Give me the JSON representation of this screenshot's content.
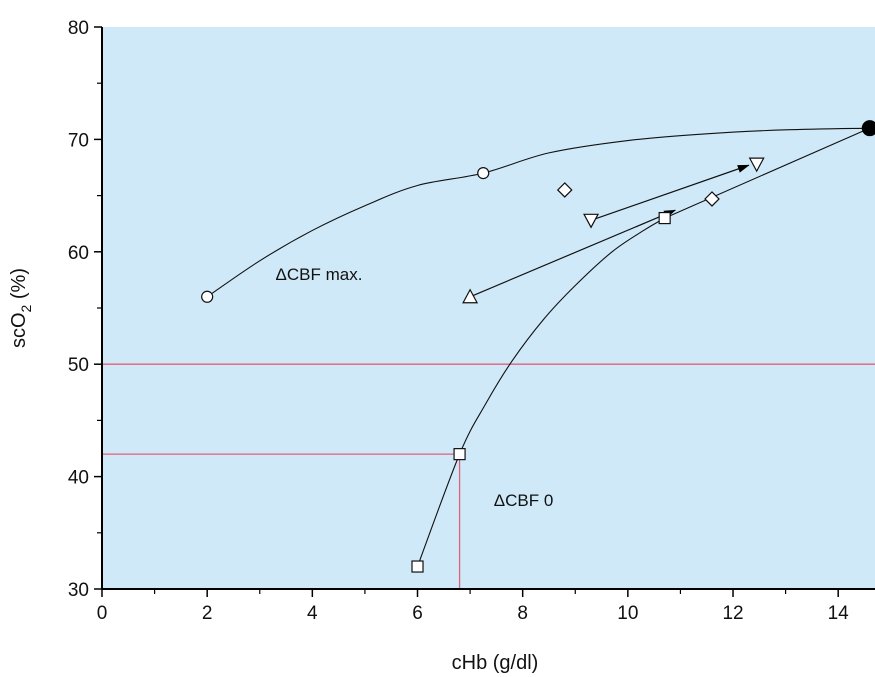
{
  "chart_data": {
    "type": "scatter",
    "xlabel": "cHb (g/dl)",
    "ylabel_main": "scO",
    "ylabel_sub": "2",
    "ylabel_unit": " (%)",
    "xlim": [
      0,
      14.7
    ],
    "ylim": [
      30,
      80
    ],
    "xticks": [
      0,
      2,
      4,
      6,
      8,
      10,
      12,
      14
    ],
    "yticks": [
      30,
      40,
      50,
      60,
      70,
      80
    ],
    "grid": false,
    "plot_background": "#cfe9f8",
    "reference_line_color": "#e0607a",
    "series": [
      {
        "marker": "filled-circle",
        "points": [
          [
            14.6,
            71
          ]
        ]
      },
      {
        "marker": "circle",
        "points": [
          [
            2,
            56
          ],
          [
            7.25,
            67
          ]
        ]
      },
      {
        "marker": "square",
        "points": [
          [
            6,
            32
          ],
          [
            6.8,
            42
          ],
          [
            10.7,
            63
          ]
        ]
      },
      {
        "marker": "diamond",
        "points": [
          [
            8.8,
            65.5
          ],
          [
            11.6,
            64.7
          ]
        ]
      },
      {
        "marker": "triangle-down",
        "points": [
          [
            9.3,
            62.8
          ],
          [
            12.45,
            67.8
          ]
        ]
      },
      {
        "marker": "triangle-up",
        "points": [
          [
            7.0,
            56
          ]
        ]
      }
    ],
    "curves": [
      {
        "name": "delta-cbf-max-curve",
        "points": [
          [
            2,
            56
          ],
          [
            3,
            59.2
          ],
          [
            4,
            61.9
          ],
          [
            5,
            64.1
          ],
          [
            6,
            65.9
          ],
          [
            7.25,
            67
          ],
          [
            8.5,
            68.8
          ],
          [
            10,
            69.9
          ],
          [
            11.5,
            70.5
          ],
          [
            13,
            70.85
          ],
          [
            14.6,
            71
          ]
        ]
      },
      {
        "name": "delta-cbf-0-curve",
        "points": [
          [
            6,
            32
          ],
          [
            6.8,
            42
          ],
          [
            7.3,
            46.5
          ],
          [
            7.8,
            50.3
          ],
          [
            8.4,
            54
          ],
          [
            9.0,
            57
          ],
          [
            9.7,
            60
          ],
          [
            10.3,
            61.9
          ],
          [
            10.7,
            63
          ]
        ]
      },
      {
        "name": "square-to-filled-line",
        "points": [
          [
            10.7,
            63
          ],
          [
            14.6,
            71
          ]
        ]
      }
    ],
    "arrows": [
      {
        "name": "arrow-triangle-up",
        "from": [
          7.0,
          56
        ],
        "to": [
          10.9,
          63.7
        ]
      },
      {
        "name": "arrow-triangle-down",
        "from": [
          9.3,
          62.8
        ],
        "to": [
          12.3,
          67.7
        ]
      }
    ],
    "reference_lines": [
      {
        "name": "horizontal-50-line",
        "type": "h",
        "y": 50,
        "x_from": 0,
        "x_to": 14.7
      },
      {
        "name": "horizontal-42-line",
        "type": "h",
        "y": 42,
        "x_from": 0,
        "x_to": 6.8
      },
      {
        "name": "vertical-6.8-line",
        "type": "v",
        "x": 6.8,
        "y_from": 30,
        "y_to": 42
      }
    ],
    "annotations": [
      {
        "name": "annotation-cbf-max",
        "text": "ΔCBF max.",
        "x": 3.3,
        "y": 57.5
      },
      {
        "name": "annotation-cbf-0",
        "text": "ΔCBF 0",
        "x": 7.45,
        "y": 37.4
      }
    ]
  }
}
